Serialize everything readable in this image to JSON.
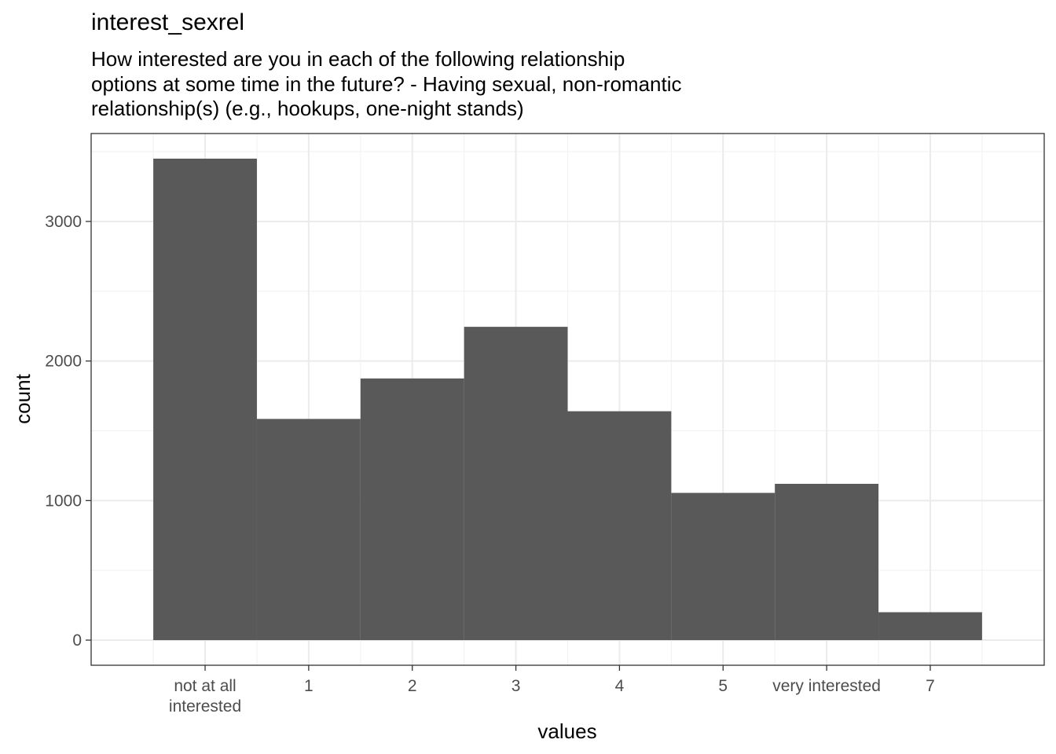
{
  "chart_data": {
    "type": "bar",
    "title": "interest_sexrel",
    "subtitle_lines": [
      "How interested are you in each of the following relationship",
      "options at some time in the future? - Having sexual, non-romantic",
      "relationship(s) (e.g., hookups, one-night stands)"
    ],
    "xlabel": "values",
    "ylabel": "count",
    "categories": [
      [
        "not at all",
        "interested"
      ],
      [
        "1"
      ],
      [
        "2"
      ],
      [
        "3"
      ],
      [
        "4"
      ],
      [
        "5"
      ],
      [
        "very interested"
      ],
      [
        "7"
      ]
    ],
    "values": [
      3450,
      1585,
      1875,
      2245,
      1640,
      1055,
      1120,
      200
    ],
    "yticks": [
      0,
      1000,
      2000,
      3000
    ],
    "ylim": [
      -180,
      3630
    ],
    "bar_color": "#595959",
    "grid": true
  }
}
